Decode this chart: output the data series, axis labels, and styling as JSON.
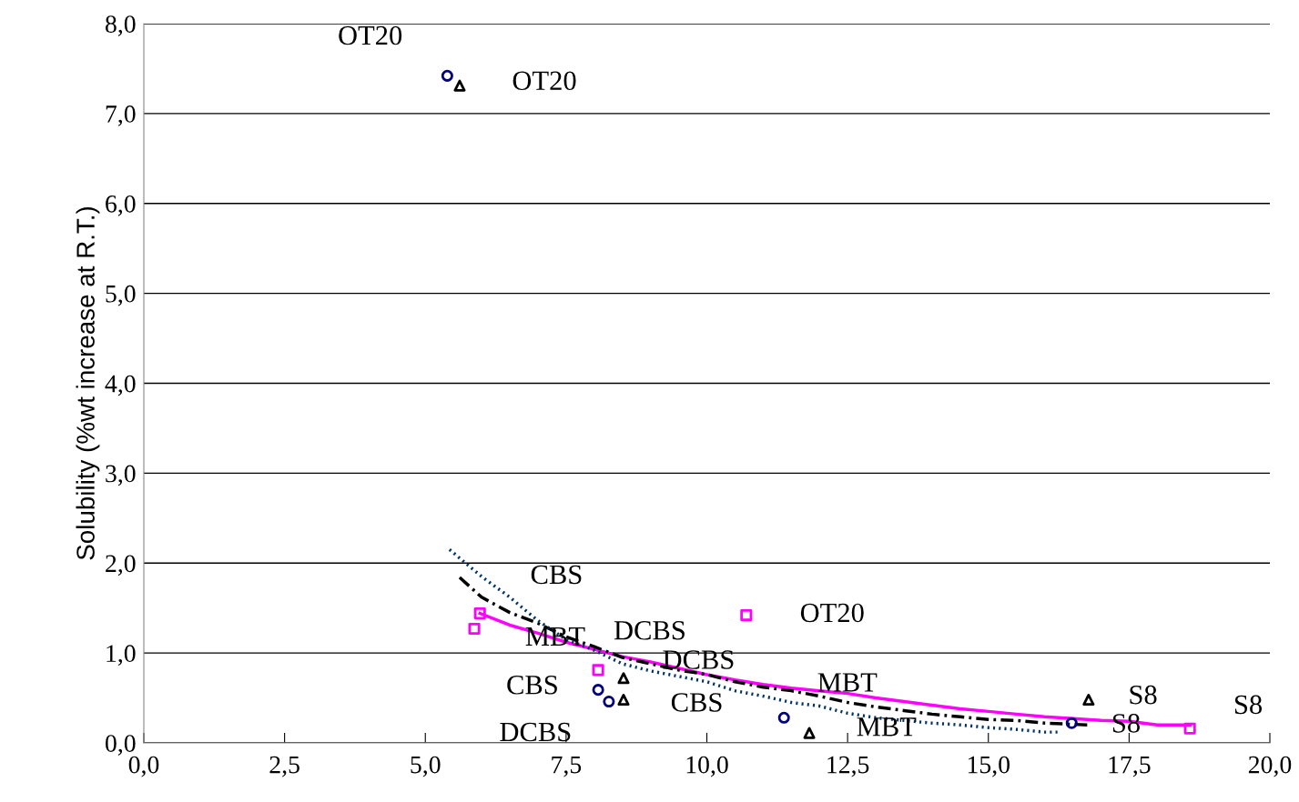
{
  "chart_data": {
    "type": "scatter",
    "ylabel": "Solubility (%wt increase at R.T.)",
    "xlim": [
      0,
      20
    ],
    "ylim": [
      0,
      8
    ],
    "xticks": [
      {
        "value": 0,
        "label": "0,0"
      },
      {
        "value": 2.5,
        "label": "2,5"
      },
      {
        "value": 5,
        "label": "5,0"
      },
      {
        "value": 7.5,
        "label": "7,5"
      },
      {
        "value": 10,
        "label": "10,0"
      },
      {
        "value": 12.5,
        "label": "12,5"
      },
      {
        "value": 15,
        "label": "15,0"
      },
      {
        "value": 17.5,
        "label": "17,5"
      },
      {
        "value": 20,
        "label": "20,0"
      }
    ],
    "yticks": [
      {
        "value": 0,
        "label": "0,0"
      },
      {
        "value": 1,
        "label": "1,0"
      },
      {
        "value": 2,
        "label": "2,0"
      },
      {
        "value": 3,
        "label": "3,0"
      },
      {
        "value": 4,
        "label": "4,0"
      },
      {
        "value": 5,
        "label": "5,0"
      },
      {
        "value": 6,
        "label": "6,0"
      },
      {
        "value": 7,
        "label": "7,0"
      },
      {
        "value": 8,
        "label": "8,0"
      }
    ],
    "grid": "y",
    "legend": false,
    "series": [
      {
        "marker": "circle",
        "color": "#000080",
        "x": [
          5.39,
          8.07,
          8.26,
          11.37,
          16.48
        ],
        "values": [
          7.42,
          0.59,
          0.46,
          0.28,
          0.22
        ]
      },
      {
        "marker": "triangle",
        "color": "#000000",
        "x": [
          5.61,
          8.52,
          8.52,
          11.82,
          16.78
        ],
        "values": [
          7.31,
          0.72,
          0.48,
          0.11,
          0.48
        ]
      },
      {
        "marker": "square",
        "color": "#ff00ff",
        "x": [
          5.97,
          5.87,
          8.07,
          10.7,
          18.58
        ],
        "values": [
          1.44,
          1.27,
          0.81,
          1.42,
          0.16
        ]
      },
      {
        "type": "line",
        "line_style": "solid",
        "color": "#ff00ff",
        "x": [
          5.97,
          6.5,
          7,
          7.5,
          8,
          8.5,
          9,
          9.5,
          10,
          10.5,
          11,
          11.5,
          12,
          12.5,
          13,
          13.5,
          14,
          14.5,
          15,
          15.5,
          16,
          16.5,
          17,
          17.5,
          18,
          18.58
        ],
        "values": [
          1.44,
          1.31,
          1.22,
          1.12,
          1.04,
          0.96,
          0.9,
          0.83,
          0.76,
          0.7,
          0.65,
          0.61,
          0.58,
          0.55,
          0.5,
          0.46,
          0.42,
          0.38,
          0.35,
          0.32,
          0.29,
          0.27,
          0.25,
          0.24,
          0.2,
          0.2
        ]
      },
      {
        "type": "line",
        "line_style": "dashdot",
        "color": "#000000",
        "x": [
          5.61,
          6,
          6.5,
          7,
          7.5,
          8,
          8.5,
          9,
          9.5,
          10,
          10.5,
          11,
          11.5,
          12,
          12.5,
          13,
          13.5,
          14,
          14.5,
          15,
          15.5,
          16,
          16.77
        ],
        "values": [
          1.84,
          1.62,
          1.45,
          1.33,
          1.18,
          1.07,
          0.95,
          0.88,
          0.81,
          0.76,
          0.68,
          0.62,
          0.58,
          0.52,
          0.45,
          0.4,
          0.36,
          0.32,
          0.29,
          0.26,
          0.25,
          0.22,
          0.2
        ]
      },
      {
        "type": "line",
        "line_style": "dotted",
        "color": "#003366",
        "x": [
          5.43,
          6,
          6.5,
          7,
          7.5,
          8,
          8.5,
          9,
          9.5,
          10,
          10.5,
          11,
          11.5,
          12,
          12.5,
          13,
          13.5,
          14,
          14.5,
          15,
          15.5,
          16,
          16.28
        ],
        "values": [
          2.15,
          1.85,
          1.62,
          1.36,
          1.15,
          1.03,
          0.88,
          0.8,
          0.74,
          0.68,
          0.58,
          0.52,
          0.45,
          0.41,
          0.33,
          0.28,
          0.25,
          0.22,
          0.2,
          0.17,
          0.15,
          0.12,
          0.12
        ]
      }
    ],
    "annotations": [
      {
        "text": "OT20",
        "x": 5.39,
        "y": 7.42
      },
      {
        "text": "OT20",
        "x": 5.61,
        "y": 7.31
      },
      {
        "text": "CBS",
        "x": 6.5,
        "y": 1.62
      },
      {
        "text": "MBT",
        "x": 5.87,
        "y": 1.27
      },
      {
        "text": "DCBS",
        "x": 8,
        "y": 1.07
      },
      {
        "text": "DCBS",
        "x": 9,
        "y": 0.8
      },
      {
        "text": "CBS",
        "x": 8.07,
        "y": 0.59
      },
      {
        "text": "CBS",
        "x": 8.52,
        "y": 0.48
      },
      {
        "text": "DCBS",
        "x": 8.26,
        "y": 0.46
      },
      {
        "text": "OT20",
        "x": 10.7,
        "y": 1.42
      },
      {
        "text": "MBT",
        "x": 12,
        "y": 0.52
      },
      {
        "text": "MBT",
        "x": 11.82,
        "y": 0.11
      },
      {
        "text": "S8",
        "x": 16.78,
        "y": 0.48
      },
      {
        "text": "S8",
        "x": 16.48,
        "y": 0.22
      },
      {
        "text": "S8",
        "x": 18.58,
        "y": 0.16
      }
    ]
  }
}
